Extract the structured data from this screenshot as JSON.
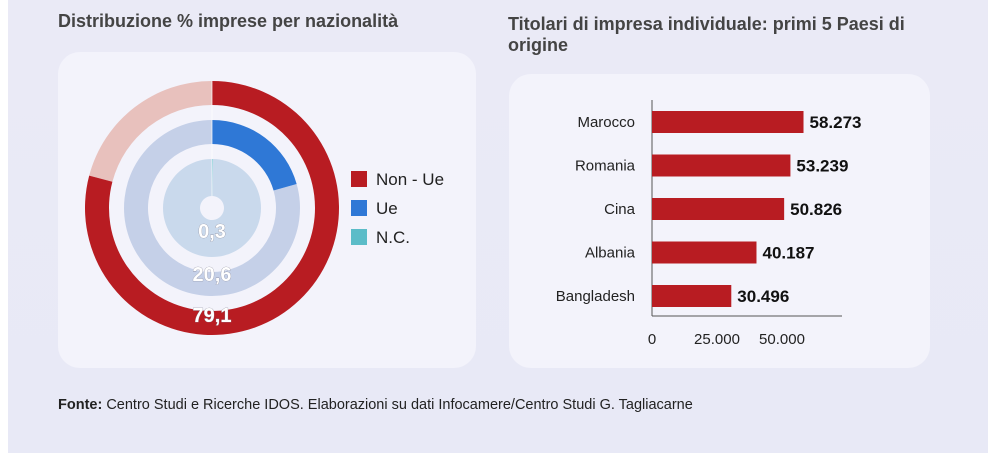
{
  "left_title": "Distribuzione % imprese per nazionalità",
  "right_title": "Titolari di impresa individuale: primi 5 Paesi di origine",
  "source": {
    "label": "Fonte:",
    "text": " Centro Studi e Ricerche IDOS. Elaborazioni su dati Infocamere/Centro Studi G. Tagliacarne"
  },
  "colors": {
    "non_ue": "#b81c22",
    "ue": "#2f78d6",
    "nc": "#5bbcc8",
    "bar": "#b81c22"
  },
  "chart_data": [
    {
      "type": "pie",
      "title": "Distribuzione % imprese per nazionalità",
      "legend": [
        "Non - Ue",
        "Ue",
        "N.C."
      ],
      "legend_position": "right",
      "rings": [
        {
          "name": "Non - Ue",
          "value": 79.1,
          "label": "79,1"
        },
        {
          "name": "Ue",
          "value": 20.6,
          "label": "20,6"
        },
        {
          "name": "N.C.",
          "value": 0.3,
          "label": "0,3"
        }
      ]
    },
    {
      "type": "bar",
      "orientation": "horizontal",
      "title": "Titolari di impresa individuale: primi 5 Paesi di origine",
      "categories": [
        "Marocco",
        "Romania",
        "Cina",
        "Albania",
        "Bangladesh"
      ],
      "values": [
        58273,
        53239,
        50826,
        40187,
        30496
      ],
      "value_labels": [
        "58.273",
        "53.239",
        "50.826",
        "40.187",
        "30.496"
      ],
      "x_ticks": [
        "0",
        "25.000",
        "50.000"
      ],
      "xlim": [
        0,
        60000
      ]
    }
  ]
}
